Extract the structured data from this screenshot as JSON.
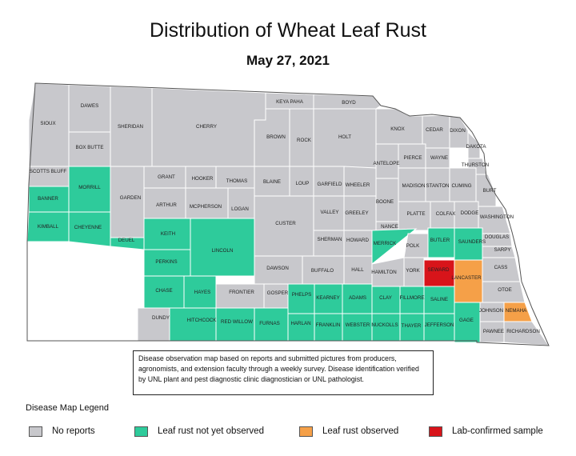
{
  "title": "Distribution of Wheat Leaf Rust",
  "date": "May 27, 2021",
  "colors": {
    "no_reports": "#c8c8cc",
    "not_observed": "#2ecb9b",
    "observed": "#f5a048",
    "lab_confirmed": "#d8141a",
    "border": "#ffffff",
    "outline": "#555555"
  },
  "counties": {
    "sioux": {
      "label": "SIOUX",
      "status": "no_reports"
    },
    "dawes": {
      "label": "DAWES",
      "status": "no_reports"
    },
    "box_butte": {
      "label": "BOX BUTTE",
      "status": "no_reports"
    },
    "sheridan": {
      "label": "SHERIDAN",
      "status": "no_reports"
    },
    "cherry": {
      "label": "CHERRY",
      "status": "no_reports"
    },
    "keya_paha": {
      "label": "KEYA PAHA",
      "status": "no_reports"
    },
    "boyd": {
      "label": "BOYD",
      "status": "no_reports"
    },
    "brown": {
      "label": "BROWN",
      "status": "no_reports"
    },
    "rock": {
      "label": "ROCK",
      "status": "no_reports"
    },
    "holt": {
      "label": "HOLT",
      "status": "no_reports"
    },
    "knox": {
      "label": "KNOX",
      "status": "no_reports"
    },
    "cedar": {
      "label": "CEDAR",
      "status": "no_reports"
    },
    "dixon": {
      "label": "DIXON",
      "status": "no_reports"
    },
    "dakota": {
      "label": "DAKOTA",
      "status": "no_reports"
    },
    "thurston": {
      "label": "THURSTON",
      "status": "no_reports"
    },
    "antelope": {
      "label": "ANTELOPE",
      "status": "no_reports"
    },
    "pierce": {
      "label": "PIERCE",
      "status": "no_reports"
    },
    "wayne": {
      "label": "WAYNE",
      "status": "no_reports"
    },
    "scotts_bluff": {
      "label": "SCOTTS BLUFF",
      "status": "no_reports"
    },
    "banner": {
      "label": "BANNER",
      "status": "not_observed"
    },
    "morrill": {
      "label": "MORRILL",
      "status": "not_observed"
    },
    "garden": {
      "label": "GARDEN",
      "status": "no_reports"
    },
    "grant": {
      "label": "GRANT",
      "status": "no_reports"
    },
    "hooker": {
      "label": "HOOKER",
      "status": "no_reports"
    },
    "thomas": {
      "label": "THOMAS",
      "status": "no_reports"
    },
    "blaine": {
      "label": "BLAINE",
      "status": "no_reports"
    },
    "loup": {
      "label": "LOUP",
      "status": "no_reports"
    },
    "garfield": {
      "label": "GARFIELD",
      "status": "no_reports"
    },
    "wheeler": {
      "label": "WHEELER",
      "status": "no_reports"
    },
    "madison": {
      "label": "MADISON",
      "status": "no_reports"
    },
    "stanton": {
      "label": "STANTON",
      "status": "no_reports"
    },
    "cuming": {
      "label": "CUMING",
      "status": "no_reports"
    },
    "burt": {
      "label": "BURT",
      "status": "no_reports"
    },
    "boone": {
      "label": "BOONE",
      "status": "no_reports"
    },
    "arthur": {
      "label": "ARTHUR",
      "status": "no_reports"
    },
    "mcpherson": {
      "label": "MCPHERSON",
      "status": "no_reports"
    },
    "logan": {
      "label": "LOGAN",
      "status": "no_reports"
    },
    "valley": {
      "label": "VALLEY",
      "status": "no_reports"
    },
    "greeley": {
      "label": "GREELEY",
      "status": "no_reports"
    },
    "platte": {
      "label": "PLATTE",
      "status": "no_reports"
    },
    "colfax": {
      "label": "COLFAX",
      "status": "no_reports"
    },
    "dodge": {
      "label": "DODGE",
      "status": "no_reports"
    },
    "washington": {
      "label": "WASHINGTON",
      "status": "no_reports"
    },
    "kimball": {
      "label": "KIMBALL",
      "status": "not_observed"
    },
    "cheyenne": {
      "label": "CHEYENNE",
      "status": "not_observed"
    },
    "deuel": {
      "label": "DEUEL",
      "status": "not_observed"
    },
    "keith": {
      "label": "KEITH",
      "status": "not_observed"
    },
    "custer": {
      "label": "CUSTER",
      "status": "no_reports"
    },
    "nance": {
      "label": "NANCE",
      "status": "no_reports"
    },
    "sherman": {
      "label": "SHERMAN",
      "status": "no_reports"
    },
    "howard": {
      "label": "HOWARD",
      "status": "no_reports"
    },
    "merrick": {
      "label": "MERRICK",
      "status": "not_observed"
    },
    "polk": {
      "label": "POLK",
      "status": "no_reports"
    },
    "butler": {
      "label": "BUTLER",
      "status": "not_observed"
    },
    "saunders": {
      "label": "SAUNDERS",
      "status": "not_observed"
    },
    "douglas": {
      "label": "DOUGLAS",
      "status": "no_reports"
    },
    "sarpy": {
      "label": "SARPY",
      "status": "no_reports"
    },
    "perkins": {
      "label": "PERKINS",
      "status": "not_observed"
    },
    "lincoln": {
      "label": "LINCOLN",
      "status": "not_observed"
    },
    "dawson": {
      "label": "DAWSON",
      "status": "no_reports"
    },
    "buffalo": {
      "label": "BUFFALO",
      "status": "no_reports"
    },
    "hall": {
      "label": "HALL",
      "status": "no_reports"
    },
    "hamilton": {
      "label": "HAMILTON",
      "status": "no_reports"
    },
    "york": {
      "label": "YORK",
      "status": "no_reports"
    },
    "seward": {
      "label": "SEWARD",
      "status": "lab_confirmed"
    },
    "lancaster": {
      "label": "LANCASTER",
      "status": "observed"
    },
    "cass": {
      "label": "CASS",
      "status": "no_reports"
    },
    "otoe": {
      "label": "OTOE",
      "status": "no_reports"
    },
    "chase": {
      "label": "CHASE",
      "status": "not_observed"
    },
    "hayes": {
      "label": "HAYES",
      "status": "not_observed"
    },
    "frontier": {
      "label": "FRONTIER",
      "status": "no_reports"
    },
    "gosper": {
      "label": "GOSPER",
      "status": "no_reports"
    },
    "phelps": {
      "label": "PHELPS",
      "status": "not_observed"
    },
    "kearney": {
      "label": "KEARNEY",
      "status": "not_observed"
    },
    "adams": {
      "label": "ADAMS",
      "status": "not_observed"
    },
    "clay": {
      "label": "CLAY",
      "status": "not_observed"
    },
    "fillmore": {
      "label": "FILLMORE",
      "status": "not_observed"
    },
    "saline": {
      "label": "SALINE",
      "status": "not_observed"
    },
    "gage": {
      "label": "GAGE",
      "status": "not_observed"
    },
    "johnson": {
      "label": "JOHNSON",
      "status": "no_reports"
    },
    "nemaha": {
      "label": "NEMAHA",
      "status": "observed"
    },
    "dundy": {
      "label": "DUNDY",
      "status": "no_reports"
    },
    "hitchcock": {
      "label": "HITCHCOCK",
      "status": "not_observed"
    },
    "red_willow": {
      "label": "RED WILLOW",
      "status": "not_observed"
    },
    "furnas": {
      "label": "FURNAS",
      "status": "not_observed"
    },
    "harlan": {
      "label": "HARLAN",
      "status": "not_observed"
    },
    "franklin": {
      "label": "FRANKLIN",
      "status": "not_observed"
    },
    "webster": {
      "label": "WEBSTER",
      "status": "not_observed"
    },
    "nuckolls": {
      "label": "NUCKOLLS",
      "status": "not_observed"
    },
    "thayer": {
      "label": "THAYER",
      "status": "not_observed"
    },
    "jefferson": {
      "label": "JEFFERSON",
      "status": "not_observed"
    },
    "pawnee": {
      "label": "PAWNEE",
      "status": "no_reports"
    },
    "richardson": {
      "label": "RICHARDSON",
      "status": "no_reports"
    }
  },
  "note": "Disease observation map based on reports and submitted pictures from producers, agronomists, and extension faculty through a weekly survey. Disease identification verified by UNL plant and pest diagnostic clinic diagnostician or UNL pathologist.",
  "legend": {
    "title": "Disease Map Legend",
    "items": [
      {
        "key": "no_reports",
        "label": "No reports"
      },
      {
        "key": "not_observed",
        "label": "Leaf rust not yet observed"
      },
      {
        "key": "observed",
        "label": "Leaf rust observed"
      },
      {
        "key": "lab_confirmed",
        "label": "Lab-confirmed sample"
      }
    ]
  }
}
